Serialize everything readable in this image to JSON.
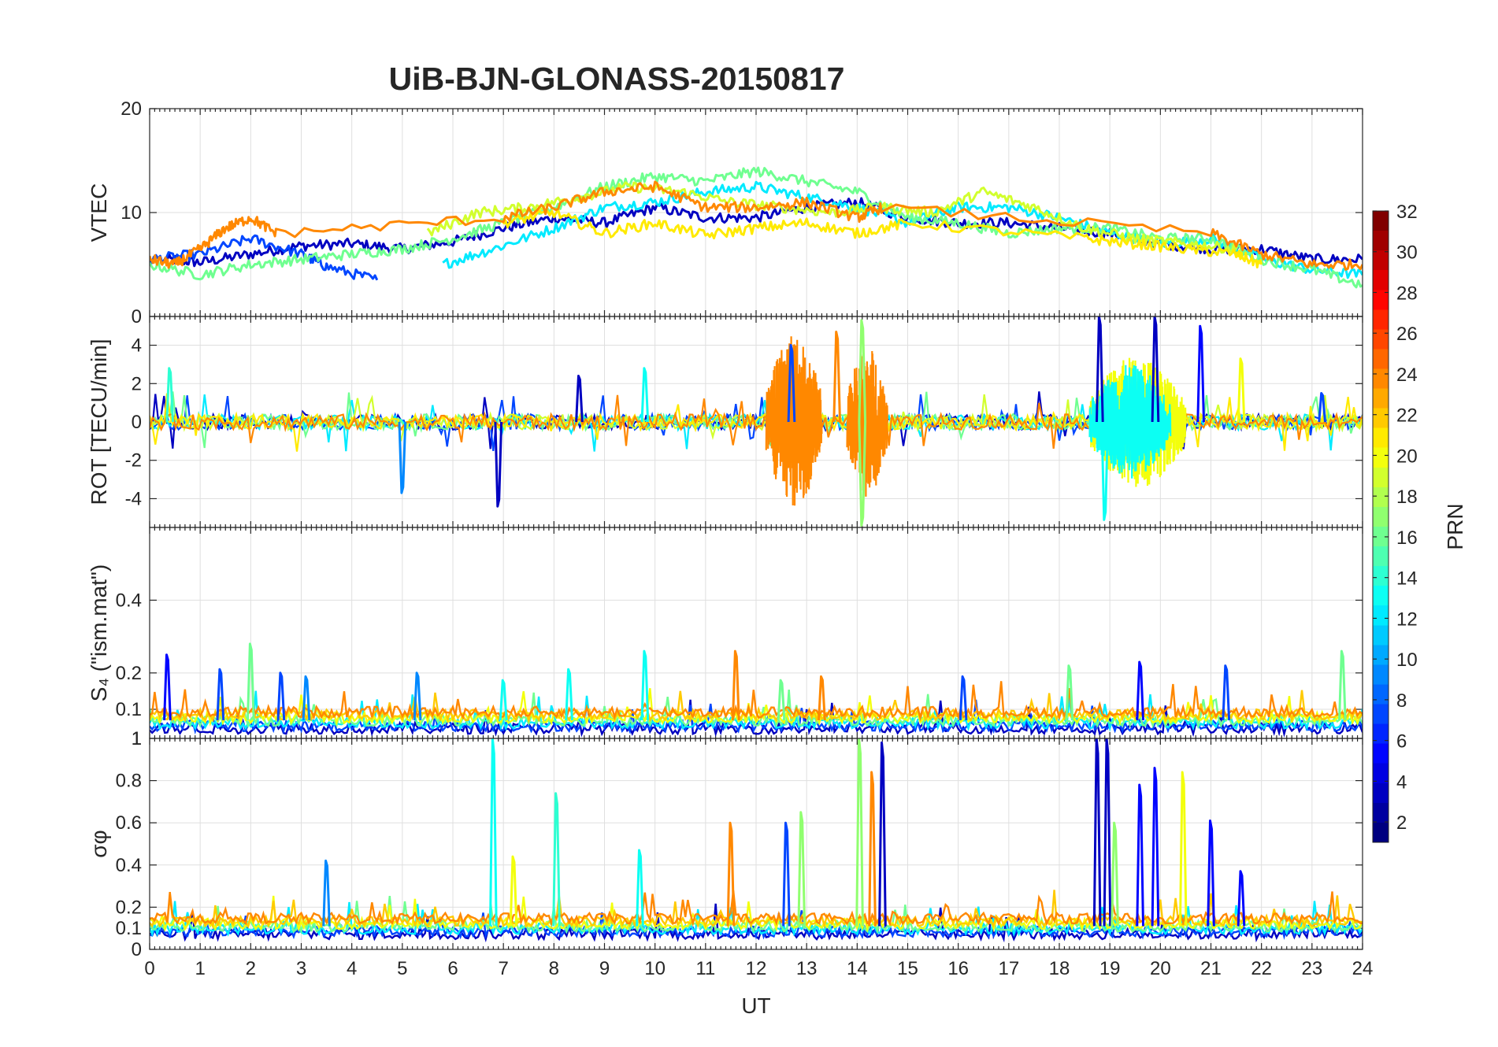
{
  "chart_data": {
    "type": "line",
    "title": "UiB-BJN-GLONASS-20150817",
    "xlabel": "UT",
    "xlim": [
      0,
      24
    ],
    "xticks": [
      "0",
      "1",
      "2",
      "3",
      "4",
      "5",
      "6",
      "7",
      "8",
      "9",
      "10",
      "11",
      "12",
      "13",
      "14",
      "15",
      "16",
      "17",
      "18",
      "19",
      "20",
      "21",
      "22",
      "23",
      "24"
    ],
    "grid": true,
    "panels": [
      {
        "id": "vtec",
        "ylabel": "VTEC",
        "ylim": [
          0,
          20
        ],
        "yticks": [
          {
            "v": 0,
            "label": "0"
          },
          {
            "v": 10,
            "label": "10"
          },
          {
            "v": 20,
            "label": "20"
          }
        ],
        "series": [
          {
            "prn": 3,
            "x": [
              0.3,
              1,
              2,
              3,
              4,
              5,
              6,
              7,
              8,
              9,
              10,
              11,
              12,
              13,
              14,
              15,
              16,
              17,
              18,
              19,
              20,
              21,
              22,
              23,
              24
            ],
            "y": [
              5.5,
              5.2,
              6.0,
              6.8,
              7.0,
              6.5,
              7.2,
              8.5,
              9.5,
              9.0,
              10.5,
              9.5,
              9.5,
              10.5,
              11.0,
              9.5,
              9.0,
              9.0,
              8.5,
              8.0,
              7.0,
              6.5,
              6.5,
              5.5,
              5.5
            ]
          },
          {
            "prn": 7,
            "x": [
              0,
              1,
              2,
              3,
              3.5,
              4.5
            ],
            "y": [
              5.5,
              6.0,
              7.5,
              6.0,
              4.8,
              3.5
            ]
          },
          {
            "prn": 12,
            "x": [
              5.8,
              6.8,
              8,
              9,
              10,
              11,
              12,
              13,
              14,
              15,
              16,
              17,
              18,
              19,
              20,
              21,
              22,
              23,
              24
            ],
            "y": [
              5.0,
              6.5,
              8.5,
              10.5,
              11.0,
              12.0,
              12.5,
              11.5,
              10.5,
              9.0,
              10.5,
              10.5,
              9.5,
              8.0,
              7.0,
              7.5,
              5.5,
              4.5,
              4.0
            ]
          },
          {
            "prn": 16,
            "x": [
              0,
              1,
              2,
              3,
              4,
              5,
              6,
              7,
              8,
              9,
              10,
              11,
              12,
              13,
              14,
              15,
              16,
              17,
              18,
              19,
              20,
              21,
              22,
              23,
              24
            ],
            "y": [
              5.0,
              4.0,
              5.0,
              5.5,
              6.0,
              6.5,
              7.5,
              9.0,
              10.5,
              12.5,
              13.5,
              13.0,
              14.0,
              13.0,
              12.0,
              9.5,
              9.0,
              8.0,
              8.5,
              8.5,
              7.5,
              7.5,
              5.5,
              4.5,
              3.0
            ]
          },
          {
            "prn": 19,
            "x": [
              5.5,
              6.5,
              7.5,
              8.5,
              9.5,
              10.5,
              11.5,
              12.5,
              13.5,
              14.5,
              15.5,
              16.5,
              17.5,
              18.5,
              19.5,
              20.5,
              21.5
            ],
            "y": [
              8.0,
              10.0,
              10.5,
              11.5,
              12.5,
              12.0,
              11.0,
              10.5,
              10.0,
              10.5,
              10.0,
              12.0,
              10.5,
              8.5,
              7.5,
              7.0,
              6.5
            ]
          },
          {
            "prn": 21,
            "x": [
              7,
              8,
              9,
              10,
              11,
              12,
              13,
              14,
              15,
              18.5,
              19.5,
              20.5,
              21.5,
              22
            ],
            "y": [
              9.0,
              10.0,
              8.0,
              9.0,
              7.8,
              8.5,
              9.0,
              8.0,
              9.0,
              7.5,
              7.0,
              6.5,
              6.0,
              5.0
            ]
          },
          {
            "prn": 24,
            "x": [
              0,
              0.5,
              1,
              1.5,
              2,
              2.5,
              7,
              8,
              9,
              10,
              11,
              12,
              13,
              14,
              14.5,
              21,
              22,
              23,
              24
            ],
            "y": [
              5.5,
              5.0,
              6.5,
              8.5,
              9.5,
              8.0,
              9.5,
              10.5,
              12.0,
              12.5,
              10.5,
              10.5,
              11.0,
              9.5,
              10.5,
              8.0,
              6.0,
              5.0,
              5.0
            ]
          }
        ]
      },
      {
        "id": "rot",
        "ylabel": "ROT [TECU/min]",
        "ylim": [
          -5.5,
          5.5
        ],
        "yticks": [
          {
            "v": -4,
            "label": "-4"
          },
          {
            "v": -2,
            "label": "-2"
          },
          {
            "v": 0,
            "label": "0"
          },
          {
            "v": 2,
            "label": "2"
          },
          {
            "v": 4,
            "label": "4"
          }
        ],
        "background_amplitude": 0.4,
        "bursts": [
          {
            "x": [
              12.2,
              13.3
            ],
            "amplitude": 4.5,
            "prn": 24
          },
          {
            "x": [
              13.8,
              14.6
            ],
            "amplitude": 4.0,
            "prn": 24
          },
          {
            "x": [
              18.6,
              20.5
            ],
            "amplitude": 3.5,
            "prn": 20
          },
          {
            "x": [
              18.6,
              20.2
            ],
            "amplitude": 3.0,
            "prn": 13
          }
        ],
        "spikes": [
          {
            "x": 0.4,
            "y": 2.8,
            "prn": 14
          },
          {
            "x": 5.0,
            "y": -3.7,
            "prn": 9
          },
          {
            "x": 6.9,
            "y": -4.4,
            "prn": 3
          },
          {
            "x": 8.5,
            "y": 2.4,
            "prn": 3
          },
          {
            "x": 9.8,
            "y": 2.8,
            "prn": 13
          },
          {
            "x": 12.7,
            "y": 4.0,
            "prn": 7
          },
          {
            "x": 13.6,
            "y": 4.7,
            "prn": 24
          },
          {
            "x": 14.1,
            "y": 5.3,
            "prn": 17
          },
          {
            "x": 14.1,
            "y": -5.4,
            "prn": 17
          },
          {
            "x": 18.8,
            "y": 5.5,
            "prn": 3
          },
          {
            "x": 18.9,
            "y": -5.1,
            "prn": 13
          },
          {
            "x": 19.9,
            "y": 5.5,
            "prn": 3
          },
          {
            "x": 20.8,
            "y": 5.0,
            "prn": 5
          },
          {
            "x": 21.6,
            "y": 3.3,
            "prn": 20
          },
          {
            "x": 23.2,
            "y": 1.5,
            "prn": 7
          }
        ]
      },
      {
        "id": "s4",
        "ylabel": "S₄ (\"ism.mat\")",
        "ylim": [
          0.02,
          0.6
        ],
        "yticks": [
          {
            "v": 0.1,
            "label": "0.1"
          },
          {
            "v": 0.2,
            "label": "0.2"
          },
          {
            "v": 0.4,
            "label": "0.4"
          }
        ],
        "corner_label": "1",
        "baseline": 0.07,
        "noise": 0.03,
        "spikes": [
          {
            "x": 0.35,
            "y": 0.25,
            "prn": 5
          },
          {
            "x": 1.4,
            "y": 0.21,
            "prn": 7
          },
          {
            "x": 2.0,
            "y": 0.28,
            "prn": 16
          },
          {
            "x": 2.6,
            "y": 0.2,
            "prn": 7
          },
          {
            "x": 3.1,
            "y": 0.19,
            "prn": 9
          },
          {
            "x": 5.3,
            "y": 0.2,
            "prn": 9
          },
          {
            "x": 7.0,
            "y": 0.18,
            "prn": 13
          },
          {
            "x": 8.3,
            "y": 0.21,
            "prn": 13
          },
          {
            "x": 9.8,
            "y": 0.26,
            "prn": 13
          },
          {
            "x": 11.6,
            "y": 0.26,
            "prn": 24
          },
          {
            "x": 12.5,
            "y": 0.18,
            "prn": 16
          },
          {
            "x": 13.3,
            "y": 0.19,
            "prn": 24
          },
          {
            "x": 16.1,
            "y": 0.19,
            "prn": 7
          },
          {
            "x": 18.2,
            "y": 0.22,
            "prn": 16
          },
          {
            "x": 19.6,
            "y": 0.23,
            "prn": 5
          },
          {
            "x": 21.3,
            "y": 0.22,
            "prn": 7
          },
          {
            "x": 23.6,
            "y": 0.26,
            "prn": 16
          }
        ]
      },
      {
        "id": "sigma",
        "ylabel": "σφ",
        "ylim": [
          0,
          1
        ],
        "yticks": [
          {
            "v": 0,
            "label": "0"
          },
          {
            "v": 0.1,
            "label": "0.1"
          },
          {
            "v": 0.2,
            "label": "0.2"
          },
          {
            "v": 0.4,
            "label": "0.4"
          },
          {
            "v": 0.6,
            "label": "0.6"
          },
          {
            "v": 0.8,
            "label": "0.8"
          },
          {
            "v": 1,
            "label": "1"
          }
        ],
        "baseline": 0.11,
        "noise": 0.05,
        "spikes": [
          {
            "x": 3.5,
            "y": 0.42,
            "prn": 9
          },
          {
            "x": 6.8,
            "y": 1.0,
            "prn": 13
          },
          {
            "x": 7.2,
            "y": 0.44,
            "prn": 20
          },
          {
            "x": 8.05,
            "y": 0.74,
            "prn": 14
          },
          {
            "x": 9.7,
            "y": 0.47,
            "prn": 13
          },
          {
            "x": 11.5,
            "y": 0.6,
            "prn": 24
          },
          {
            "x": 12.6,
            "y": 0.6,
            "prn": 7
          },
          {
            "x": 12.9,
            "y": 0.65,
            "prn": 17
          },
          {
            "x": 14.05,
            "y": 1.0,
            "prn": 17
          },
          {
            "x": 14.3,
            "y": 0.84,
            "prn": 24
          },
          {
            "x": 14.5,
            "y": 0.98,
            "prn": 3
          },
          {
            "x": 18.75,
            "y": 1.0,
            "prn": 3
          },
          {
            "x": 18.95,
            "y": 1.0,
            "prn": 3
          },
          {
            "x": 19.1,
            "y": 0.6,
            "prn": 17
          },
          {
            "x": 19.6,
            "y": 0.78,
            "prn": 5
          },
          {
            "x": 19.9,
            "y": 0.86,
            "prn": 5
          },
          {
            "x": 20.45,
            "y": 0.84,
            "prn": 20
          },
          {
            "x": 21.0,
            "y": 0.61,
            "prn": 5
          },
          {
            "x": 21.6,
            "y": 0.37,
            "prn": 5
          }
        ]
      }
    ],
    "colorbar": {
      "label": "PRN",
      "range": [
        1,
        32
      ],
      "colormap": "jet",
      "ticks": [
        "2",
        "4",
        "6",
        "8",
        "10",
        "12",
        "14",
        "16",
        "18",
        "20",
        "22",
        "24",
        "26",
        "28",
        "30",
        "32"
      ]
    }
  }
}
